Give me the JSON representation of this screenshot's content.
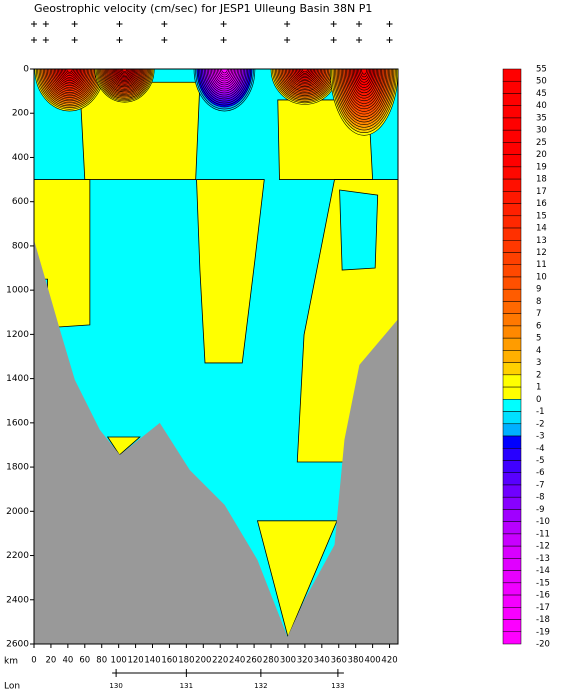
{
  "chart_data": {
    "type": "section",
    "title": "Geostrophic velocity (cm/sec) for JESP1 Ulleung Basin 38N P1",
    "x_label": "km",
    "lon_label": "Lon",
    "xlim": [
      0,
      430
    ],
    "ylim": [
      0,
      2600
    ],
    "xticks": [
      0,
      20,
      40,
      60,
      80,
      100,
      120,
      140,
      160,
      180,
      200,
      220,
      240,
      260,
      280,
      300,
      320,
      340,
      360,
      380,
      400,
      420
    ],
    "yticks": [
      0,
      200,
      400,
      600,
      800,
      1000,
      1200,
      1400,
      1600,
      1800,
      2000,
      2200,
      2400,
      2600
    ],
    "lon_ticks": [
      {
        "value": 130,
        "km": 97
      },
      {
        "value": 131,
        "km": 180
      },
      {
        "value": 132,
        "km": 268
      },
      {
        "value": 133,
        "km": 359
      }
    ],
    "stations_km": [
      0,
      14,
      48,
      101,
      154,
      224,
      299,
      354,
      384,
      420
    ],
    "base_value": -0.5,
    "regions": [
      {
        "value": 0.5,
        "points": [
          [
            54,
            60
          ],
          [
            196,
            60
          ],
          [
            191,
            500
          ],
          [
            60,
            500
          ]
        ]
      },
      {
        "value": 0.5,
        "points": [
          [
            288,
            140
          ],
          [
            395,
            140
          ],
          [
            400,
            500
          ],
          [
            290,
            500
          ]
        ]
      },
      {
        "value": 0.5,
        "points": [
          [
            0,
            500
          ],
          [
            66,
            500
          ],
          [
            66,
            1157
          ],
          [
            31,
            1166
          ],
          [
            0,
            1166
          ]
        ]
      },
      {
        "value": -0.5,
        "points": [
          [
            0,
            950
          ],
          [
            16,
            950
          ],
          [
            16,
            1040
          ],
          [
            0,
            1050
          ]
        ]
      },
      {
        "value": 0.5,
        "points": [
          [
            192,
            500
          ],
          [
            272,
            500
          ],
          [
            261,
            863
          ],
          [
            246,
            1329
          ],
          [
            202,
            1329
          ],
          [
            196,
            909
          ]
        ]
      },
      {
        "value": 0.5,
        "points": [
          [
            355,
            500
          ],
          [
            430,
            500
          ],
          [
            430,
            1777
          ],
          [
            311,
            1777
          ],
          [
            319,
            1202
          ]
        ]
      },
      {
        "value": -0.5,
        "points": [
          [
            361,
            547
          ],
          [
            406,
            570
          ],
          [
            403,
            900
          ],
          [
            364,
            909
          ]
        ]
      },
      {
        "value": 0.5,
        "points": [
          [
            264,
            2043
          ],
          [
            358,
            2043
          ],
          [
            300,
            2568
          ]
        ]
      },
      {
        "value": 0.5,
        "points": [
          [
            87,
            1664
          ],
          [
            125,
            1664
          ],
          [
            101,
            1745
          ]
        ]
      }
    ],
    "eddies": [
      {
        "km": 42,
        "depth": 0,
        "half_width": 41,
        "half_depth": 190,
        "peak": 40
      },
      {
        "km": 107,
        "depth": 0,
        "half_width": 35,
        "half_depth": 150,
        "peak": 45
      },
      {
        "km": 225,
        "depth": 0,
        "half_width": 36,
        "half_depth": 190,
        "peak": -20
      },
      {
        "km": 320,
        "depth": 0,
        "half_width": 40,
        "half_depth": 160,
        "peak": 35
      },
      {
        "km": 390,
        "depth": 0,
        "half_width": 40,
        "half_depth": 300,
        "peak": 40
      }
    ],
    "bathymetry": {
      "km": [
        0,
        30.7,
        48.3,
        77.8,
        101.4,
        148.6,
        184,
        225.2,
        264,
        299.5,
        319.6,
        355,
        366.7,
        384.4,
        429.2
      ],
      "depth": [
        773,
        1180,
        1406,
        1632,
        1745,
        1600,
        1813,
        1971,
        2220,
        2568,
        2400,
        2152,
        1677,
        1338,
        1135
      ],
      "color": "#999999"
    },
    "colorbar": {
      "levels": [
        55,
        50,
        45,
        40,
        35,
        30,
        25,
        20,
        19,
        18,
        17,
        16,
        15,
        14,
        13,
        12,
        11,
        10,
        9,
        8,
        7,
        6,
        5,
        4,
        3,
        2,
        1,
        0,
        -1,
        -2,
        -3,
        -4,
        -5,
        -6,
        -7,
        -8,
        -9,
        -10,
        -11,
        -12,
        -13,
        -14,
        -15,
        -16,
        -17,
        -18,
        -19,
        -20
      ],
      "colors": [
        "#ff0000",
        "#ff0000",
        "#ff0000",
        "#ff0000",
        "#ff0000",
        "#ff0000",
        "#ff0000",
        "#ff0000",
        "#ff0800",
        "#ff1000",
        "#ff1800",
        "#ff2000",
        "#ff2800",
        "#ff3000",
        "#ff3800",
        "#ff4000",
        "#ff4800",
        "#ff5000",
        "#ff5c00",
        "#ff6800",
        "#ff7800",
        "#ff8800",
        "#ff9c00",
        "#ffb000",
        "#ffd000",
        "#ffff00",
        "#ffff00",
        "#00ffff",
        "#00e0ff",
        "#00b0ff",
        "#0000ff",
        "#2800ff",
        "#4000ff",
        "#5800ff",
        "#7000ff",
        "#8800ff",
        "#a000ff",
        "#b800ff",
        "#c800ff",
        "#d800ff",
        "#e000ff",
        "#e800ff",
        "#f000ff",
        "#f400ff",
        "#f800ff",
        "#fc00ff",
        "#ff00ff"
      ]
    }
  }
}
